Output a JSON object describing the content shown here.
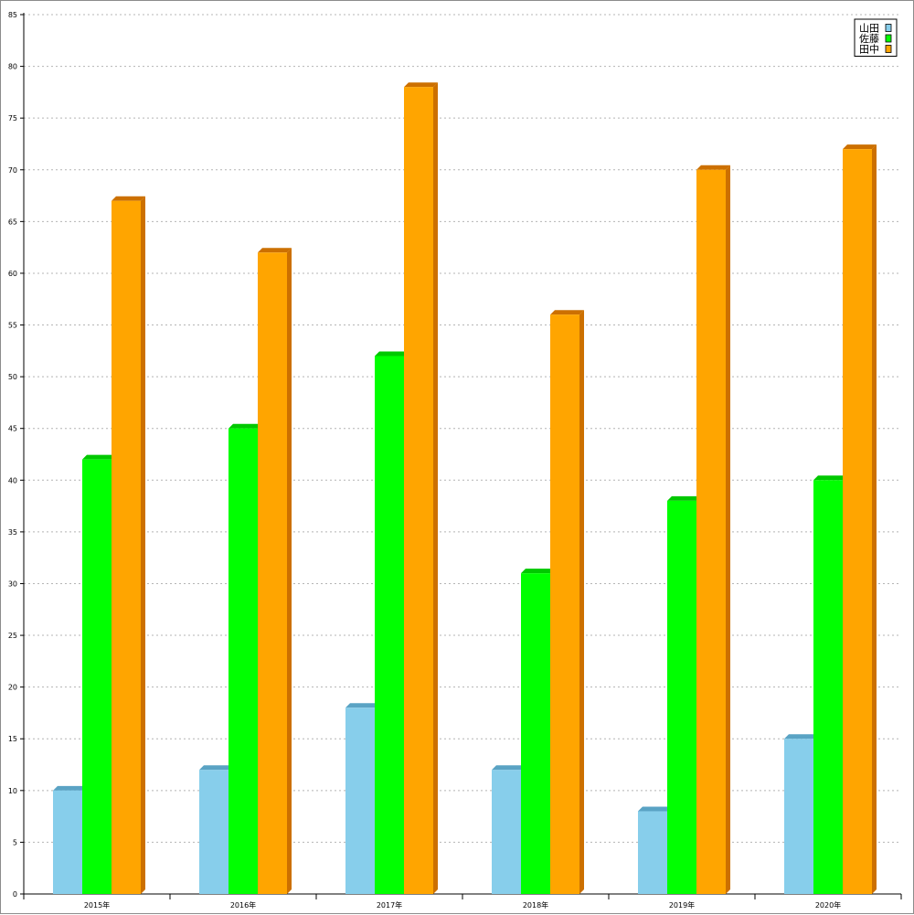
{
  "chart_data": {
    "type": "bar",
    "categories": [
      "2015年",
      "2016年",
      "2017年",
      "2018年",
      "2019年",
      "2020年"
    ],
    "series": [
      {
        "name": "山田",
        "values": [
          10,
          12,
          18,
          12,
          8,
          15
        ],
        "color": "#87ceeb",
        "top_color": "#5aa3c4",
        "side_color": "#5aa3c4"
      },
      {
        "name": "佐藤",
        "values": [
          42,
          45,
          52,
          31,
          38,
          40
        ],
        "color": "#00ff00",
        "top_color": "#00c800",
        "side_color": "#00c800"
      },
      {
        "name": "田中",
        "values": [
          67,
          62,
          78,
          56,
          70,
          72
        ],
        "color": "#ffa500",
        "top_color": "#cc7000",
        "side_color": "#cc7000"
      }
    ],
    "y_ticks": [
      0,
      5,
      10,
      15,
      20,
      25,
      30,
      35,
      40,
      45,
      50,
      55,
      60,
      65,
      70,
      75,
      80,
      85
    ],
    "ylim": [
      0,
      85
    ],
    "grid": true,
    "legend_position": "top-right",
    "title": "",
    "xlabel": "",
    "ylabel": ""
  }
}
